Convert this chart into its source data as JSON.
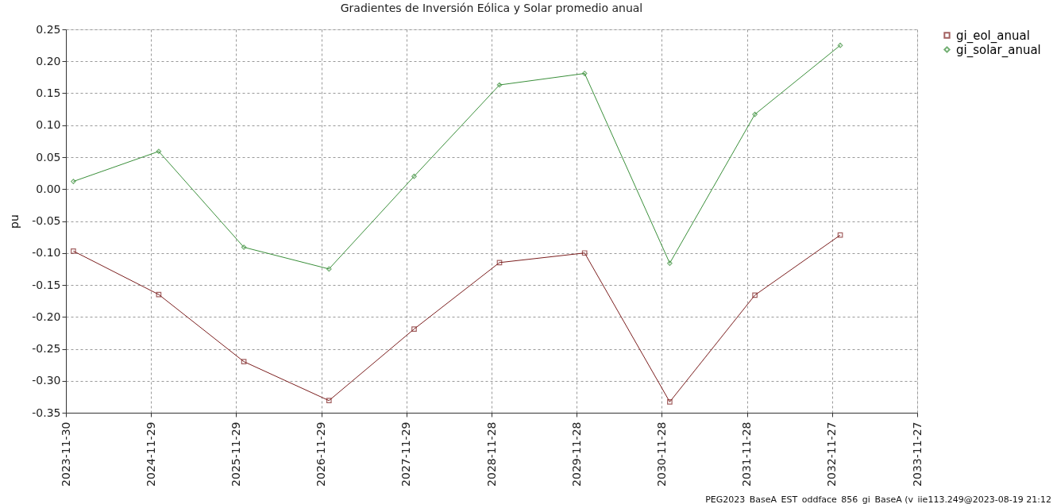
{
  "chart_data": {
    "type": "line",
    "title": "Gradientes de Inversión Eólica y Solar promedio anual",
    "ylabel": "pu",
    "x": [
      "2024-01-01",
      "2025-01-01",
      "2026-01-01",
      "2027-01-01",
      "2028-01-01",
      "2029-01-01",
      "2030-01-01",
      "2031-01-01",
      "2032-01-01",
      "2033-01-01"
    ],
    "series": [
      {
        "name": "gi_eol_anual",
        "color": "#7b1e1e",
        "marker": "square",
        "values": [
          -0.097,
          -0.165,
          -0.27,
          -0.331,
          -0.219,
          -0.115,
          -0.1,
          -0.333,
          -0.166,
          -0.072
        ]
      },
      {
        "name": "gi_solar_anual",
        "color": "#3a8f3a",
        "marker": "diamond",
        "values": [
          0.012,
          0.059,
          -0.091,
          -0.125,
          0.02,
          0.163,
          0.181,
          -0.116,
          0.117,
          0.225
        ]
      }
    ],
    "xlim": [
      "2023-11-30",
      "2033-11-27"
    ],
    "xticks": [
      "2023-11-30",
      "2024-11-29",
      "2025-11-29",
      "2026-11-29",
      "2027-11-29",
      "2028-11-28",
      "2029-11-28",
      "2030-11-28",
      "2031-11-28",
      "2032-11-27",
      "2033-11-27"
    ],
    "ylim": [
      -0.35,
      0.25
    ],
    "yticks": [
      -0.35,
      {
        "value": -0.3,
        "label": "-0.30"
      },
      -0.25,
      {
        "value": -0.2,
        "label": "-0.20"
      },
      -0.15,
      {
        "value": -0.1,
        "label": "-0.10"
      },
      -0.05,
      {
        "value": 0,
        "label": "0.00"
      },
      0.05,
      {
        "value": 0.1,
        "label": "0.10"
      },
      0.15,
      {
        "value": 0.2,
        "label": "0.20"
      },
      0.25
    ],
    "grid": true,
    "legend": "right",
    "line_style": "solid",
    "annotations": [
      "PEG2023_BaseA_EST_oddface_856_gi_BaseA (v_iie113.249@2023-08-19 21:12"
    ]
  }
}
